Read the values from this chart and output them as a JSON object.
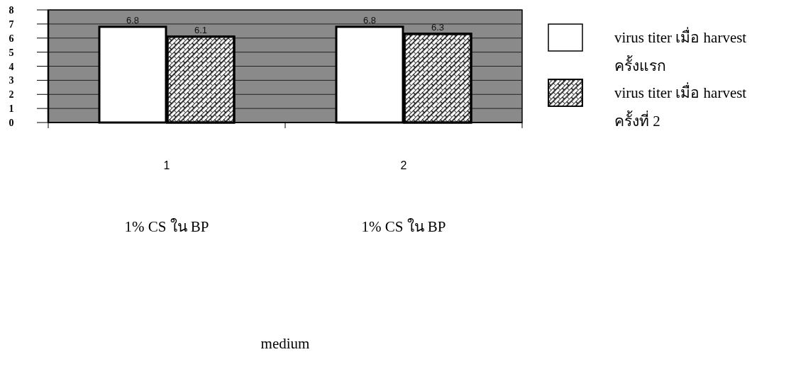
{
  "chart_data": {
    "type": "bar",
    "categories": [
      "1",
      "2"
    ],
    "series": [
      {
        "name": "virus titer เมื่อ harvest ครั้งแรก",
        "color": "#ffffff",
        "values": [
          6.8,
          6.8
        ]
      },
      {
        "name": "virus titer เมื่อ harvest ครั้งที่ 2",
        "color": "#ffffff",
        "values": [
          6.1,
          6.3
        ]
      }
    ],
    "ylim": [
      0,
      8
    ],
    "yticks": [
      0,
      1,
      2,
      3,
      4,
      5,
      6,
      7,
      8
    ],
    "grid": "y",
    "legend": "right",
    "data_labels": true,
    "annotations": [
      "1% CS ใน BP",
      "1% CS ใน BP",
      "medium"
    ]
  }
}
